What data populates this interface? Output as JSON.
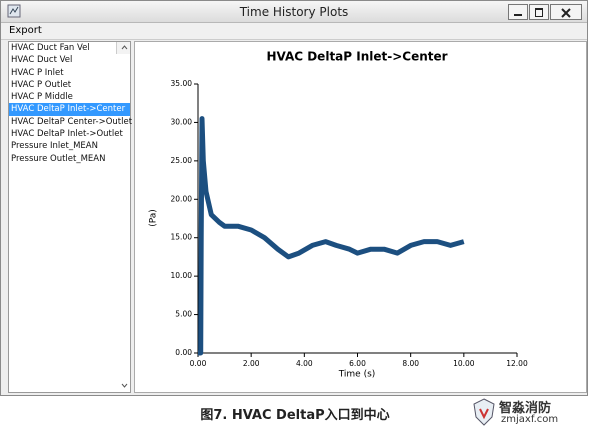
{
  "window": {
    "title": "Time History Plots",
    "menu": [
      "Export"
    ],
    "list": [
      "HVAC Duct Fan Vel",
      "HVAC Duct Vel",
      "HVAC P Inlet",
      "HVAC P Outlet",
      "HVAC P Middle",
      "HVAC DeltaP Inlet->Center",
      "HVAC DeltaP Center->Outlet",
      "HVAC DeltaP Inlet->Outlet",
      "Pressure Inlet_MEAN",
      "Pressure Outlet_MEAN"
    ],
    "selected": 5
  },
  "chart_data": {
    "type": "line",
    "title": "HVAC DeltaP Inlet->Center",
    "x_label": "Time (s)",
    "y_label": "(Pa)",
    "x": [
      0,
      0.1,
      0.12,
      0.15,
      0.2,
      0.3,
      0.5,
      0.8,
      1.0,
      1.5,
      2.0,
      2.5,
      3.0,
      3.4,
      3.8,
      4.3,
      4.8,
      5.2,
      5.7,
      6.0,
      6.5,
      7.0,
      7.5,
      8.0,
      8.5,
      9.0,
      9.5,
      10.0
    ],
    "values": [
      0,
      0,
      15,
      30.5,
      25,
      21,
      18,
      17,
      16.5,
      16.5,
      16,
      15,
      13.5,
      12.5,
      13,
      14,
      14.5,
      14,
      13.5,
      13,
      13.5,
      13.5,
      13,
      14,
      14.5,
      14.5,
      14,
      14.5
    ],
    "color": "#1c4f80",
    "xlim": [
      0,
      12
    ],
    "ylim": [
      0,
      35
    ],
    "xticks": [
      {
        "value": 0,
        "label": "0.00"
      },
      {
        "value": 2,
        "label": "2.00"
      },
      {
        "value": 4,
        "label": "4.00"
      },
      {
        "value": 6,
        "label": "6.00"
      },
      {
        "value": 8,
        "label": "8.00"
      },
      {
        "value": 10,
        "label": "10.00"
      },
      {
        "value": 12,
        "label": "12.00"
      }
    ],
    "yticks": [
      {
        "value": 0,
        "label": "0.00"
      },
      {
        "value": 5,
        "label": "5.00"
      },
      {
        "value": 10,
        "label": "10.00"
      },
      {
        "value": 15,
        "label": "15.00"
      },
      {
        "value": 20,
        "label": "20.00"
      },
      {
        "value": 25,
        "label": "25.00"
      },
      {
        "value": 30,
        "label": "30.00"
      },
      {
        "value": 35,
        "label": "35.00"
      }
    ],
    "grid": false
  },
  "caption": "图7. HVAC DeltaP入口到中心",
  "watermark": {
    "name": "智淼消防",
    "url": "zmjaxf.com"
  }
}
